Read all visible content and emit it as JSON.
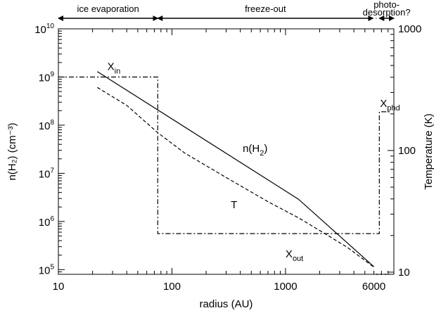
{
  "chart_data": {
    "type": "line",
    "title": "",
    "xlabel": "radius (AU)",
    "ylabel_left": "n(H₂) (cm⁻³)",
    "ylabel_right": "Temperature (K)",
    "x_scale": "log",
    "y_left_scale": "log",
    "y_right_scale": "log",
    "xlim": [
      10,
      9000
    ],
    "ylim_left": [
      80000,
      10000000000
    ],
    "ylim_right": [
      9.6,
      1000
    ],
    "grid": false,
    "legend": "none",
    "x_ticks": [
      {
        "value": 10,
        "label": "10"
      },
      {
        "value": 100,
        "label": "100"
      },
      {
        "value": 1000,
        "label": "1000"
      },
      {
        "value": 6000,
        "label": "6000"
      }
    ],
    "y_left_ticks": [
      {
        "value": 100000,
        "base": "10",
        "exp": "5"
      },
      {
        "value": 1000000,
        "base": "10",
        "exp": "6"
      },
      {
        "value": 10000000,
        "base": "10",
        "exp": "7"
      },
      {
        "value": 100000000,
        "base": "10",
        "exp": "8"
      },
      {
        "value": 1000000000,
        "base": "10",
        "exp": "9"
      },
      {
        "value": 10000000000,
        "base": "10",
        "exp": "10"
      }
    ],
    "y_right_ticks": [
      {
        "value": 10,
        "label": "10"
      },
      {
        "value": 100,
        "label": "100"
      },
      {
        "value": 1000,
        "label": "1000"
      }
    ],
    "regions": [
      {
        "label": "ice evaporation",
        "x_from": 10,
        "x_to": 75
      },
      {
        "label": "freeze-out",
        "x_from": 75,
        "x_to": 5900
      },
      {
        "label": "photo-desorption?",
        "x_from": 6700,
        "x_to": 9000
      }
    ],
    "series": [
      {
        "name": "n(H₂)",
        "axis": "left",
        "style": "solid",
        "x": [
          22,
          1300,
          6000
        ],
        "y": [
          1300000000,
          2900000,
          115000
        ]
      },
      {
        "name": "T",
        "axis": "right",
        "style": "dashed",
        "x": [
          22,
          40,
          75,
          130,
          300,
          700,
          1300,
          2000,
          3500,
          6000
        ],
        "y": [
          330,
          235,
          140,
          95,
          60,
          38,
          28,
          22,
          16,
          11
        ]
      },
      {
        "name": "X",
        "axis": "left",
        "style": "dash-dot",
        "x": [
          10,
          75,
          75,
          6700,
          6700,
          9000
        ],
        "y": [
          1000000000,
          1000000000,
          560000,
          560000,
          190000000,
          190000000
        ]
      }
    ],
    "annotations": [
      {
        "base": "X",
        "sub": "in",
        "x": 27,
        "y": 1400000000
      },
      {
        "base": "X",
        "sub": "phd",
        "x": 6800,
        "y": 240000000
      },
      {
        "base": "X",
        "sub": "out",
        "x": 1000,
        "y": 180000
      },
      {
        "base": "n(H",
        "sub": "2",
        "tail": ")",
        "x": 420,
        "y": 28000000
      },
      {
        "base": "T",
        "sub": "",
        "x": 330,
        "y": 1900000
      }
    ]
  }
}
